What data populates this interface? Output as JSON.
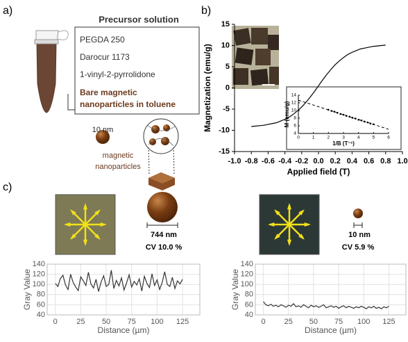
{
  "panel_labels": [
    "a)",
    "b)",
    "c)"
  ],
  "precursor": {
    "title": "Precursor solution",
    "items": [
      "PEGDA 250",
      "Darocur 1173",
      "1-vinyl-2-pyrrolidone"
    ],
    "highlight": [
      "Bare magnetic",
      "nanoparticles in toluene"
    ]
  },
  "nanoparticle": {
    "size": "10 nm",
    "caption": [
      "magnetic",
      "nanoparticles"
    ]
  },
  "panel_c": {
    "left": {
      "size": "744 nm",
      "cv": "CV 10.0 %"
    },
    "right": {
      "size": "10 nm",
      "cv": "CV 5.9 %"
    }
  },
  "chart_data": [
    {
      "type": "line",
      "xlabel": "Applied field (T)",
      "ylabel": "Magnetization (emu/g)",
      "color": "#000000",
      "grid": false,
      "x": [
        -0.8,
        -0.75,
        -0.7,
        -0.65,
        -0.6,
        -0.55,
        -0.5,
        -0.45,
        -0.4,
        -0.35,
        -0.3,
        -0.25,
        -0.2,
        -0.15,
        -0.1,
        -0.05,
        0,
        0.05,
        0.1,
        0.15,
        0.2,
        0.25,
        0.3,
        0.35,
        0.4,
        0.45,
        0.5,
        0.55,
        0.6,
        0.65,
        0.7,
        0.75,
        0.8
      ],
      "values": [
        -9.1,
        -9.0,
        -8.9,
        -8.8,
        -8.6,
        -8.4,
        -8.2,
        -7.8,
        -7.4,
        -6.9,
        -6.2,
        -5.4,
        -4.5,
        -3.4,
        -2.2,
        -0.9,
        0.5,
        1.9,
        3.2,
        4.4,
        5.5,
        6.4,
        7.2,
        7.9,
        8.4,
        8.8,
        9.2,
        9.4,
        9.6,
        9.8,
        9.9,
        10.0,
        10.1
      ],
      "xlim": [
        -1,
        1
      ],
      "xticks": [
        {
          "value": -1,
          "label": "-1.0"
        },
        -0.8,
        -0.6,
        -0.4,
        -0.2,
        {
          "value": 0,
          "label": "0.0"
        },
        0.2,
        0.4,
        0.6,
        0.8,
        {
          "value": 1,
          "label": "1.0"
        }
      ],
      "ylim": [
        -15,
        15
      ],
      "yticks": [
        -15,
        -10,
        -5,
        0,
        5,
        10,
        15
      ]
    },
    {
      "type": "scatter",
      "xlabel": "1/B (T⁻¹)",
      "ylabel": "M (emu/g)",
      "color": "#000000",
      "grid": false,
      "x": [
        2.0,
        2.2,
        2.4,
        2.6,
        2.8,
        3.0,
        3.2,
        3.4,
        3.6,
        3.8,
        4.0,
        4.2,
        4.4,
        4.6,
        4.8,
        5.0
      ],
      "values": [
        10.2,
        9.9,
        9.7,
        9.4,
        9.1,
        8.9,
        8.6,
        8.4,
        8.1,
        7.9,
        7.6,
        7.4,
        7.1,
        6.9,
        6.6,
        6.4
      ],
      "fit": {
        "x": [
          0,
          6
        ],
        "values": [
          12.7,
          5.1
        ]
      },
      "xlim": [
        0,
        6
      ],
      "xticks": [
        0,
        1,
        2,
        3,
        4,
        5,
        6
      ],
      "ylim": [
        4,
        14
      ],
      "yticks": [
        4,
        6,
        8,
        10,
        12,
        14
      ]
    },
    {
      "type": "line",
      "xlabel": "Distance (µm)",
      "ylabel": "Gray Value",
      "color": "#333333",
      "grid": true,
      "x": [
        0,
        2.5,
        5,
        7.5,
        10,
        12.5,
        15,
        17.5,
        20,
        22.5,
        25,
        27.5,
        30,
        32.5,
        35,
        37.5,
        40,
        42.5,
        45,
        47.5,
        50,
        52.5,
        55,
        57.5,
        60,
        62.5,
        65,
        67.5,
        70,
        72.5,
        75,
        77.5,
        80,
        82.5,
        85,
        87.5,
        90,
        92.5,
        95,
        97.5,
        100,
        102.5,
        105,
        107.5,
        110,
        112.5,
        115,
        117.5,
        120,
        122.5,
        125
      ],
      "values": [
        102,
        96,
        112,
        118,
        99,
        90,
        120,
        104,
        95,
        88,
        115,
        107,
        98,
        124,
        101,
        93,
        110,
        86,
        105,
        117,
        96,
        100,
        128,
        92,
        108,
        97,
        113,
        89,
        103,
        119,
        95,
        106,
        99,
        111,
        87,
        116,
        102,
        94,
        121,
        98,
        109,
        90,
        104,
        125,
        100,
        96,
        114,
        92,
        107,
        101,
        110
      ],
      "xlim": [
        -8,
        142
      ],
      "xticks": [
        0,
        25,
        50,
        75,
        100,
        125
      ],
      "ylim": [
        40,
        140
      ],
      "yticks": [
        40,
        60,
        80,
        100,
        120,
        140
      ]
    },
    {
      "type": "line",
      "xlabel": "Distance (µm)",
      "ylabel": "Gray Value",
      "color": "#333333",
      "grid": true,
      "x": [
        0,
        2.5,
        5,
        7.5,
        10,
        12.5,
        15,
        17.5,
        20,
        22.5,
        25,
        27.5,
        30,
        32.5,
        35,
        37.5,
        40,
        42.5,
        45,
        47.5,
        50,
        52.5,
        55,
        57.5,
        60,
        62.5,
        65,
        67.5,
        70,
        72.5,
        75,
        77.5,
        80,
        82.5,
        85,
        87.5,
        90,
        92.5,
        95,
        97.5,
        100,
        102.5,
        105,
        107.5,
        110,
        112.5,
        115,
        117.5,
        120,
        122.5,
        125
      ],
      "values": [
        66,
        60,
        58,
        61,
        57,
        59,
        56,
        60,
        58,
        55,
        59,
        57,
        62,
        56,
        58,
        55,
        60,
        57,
        54,
        59,
        56,
        58,
        55,
        57,
        60,
        54,
        56,
        58,
        55,
        57,
        53,
        56,
        58,
        54,
        57,
        55,
        53,
        56,
        54,
        57,
        55,
        52,
        56,
        54,
        57,
        53,
        55,
        52,
        56,
        54,
        57
      ],
      "xlim": [
        -8,
        142
      ],
      "xticks": [
        0,
        25,
        50,
        75,
        100,
        125
      ],
      "ylim": [
        40,
        140
      ],
      "yticks": [
        40,
        60,
        80,
        100,
        120,
        140
      ]
    }
  ]
}
